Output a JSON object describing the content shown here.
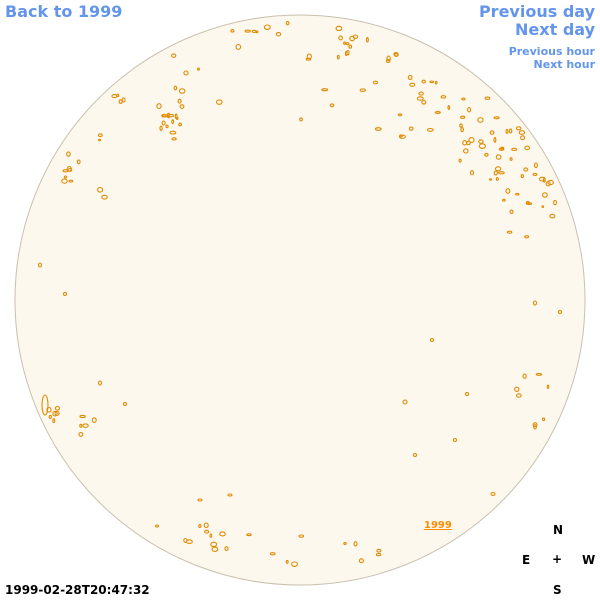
{
  "nav": {
    "back_label": "Back to 1999",
    "prev_day_label": "Previous day",
    "next_day_label": "Next day",
    "prev_hour_label": "Previous hour",
    "next_hour_label": "Next hour"
  },
  "disk": {
    "year_label": "1999",
    "timestamp": "1999-02-28T20:47:32"
  },
  "compass": {
    "north": "N",
    "east": "E",
    "center": "+",
    "west": "W",
    "south": "S"
  },
  "colors": {
    "link": "#6495ed",
    "disk_fill": "#fdf8ee",
    "disk_edge": "#c9c0ae",
    "feature": "#e08a00"
  }
}
